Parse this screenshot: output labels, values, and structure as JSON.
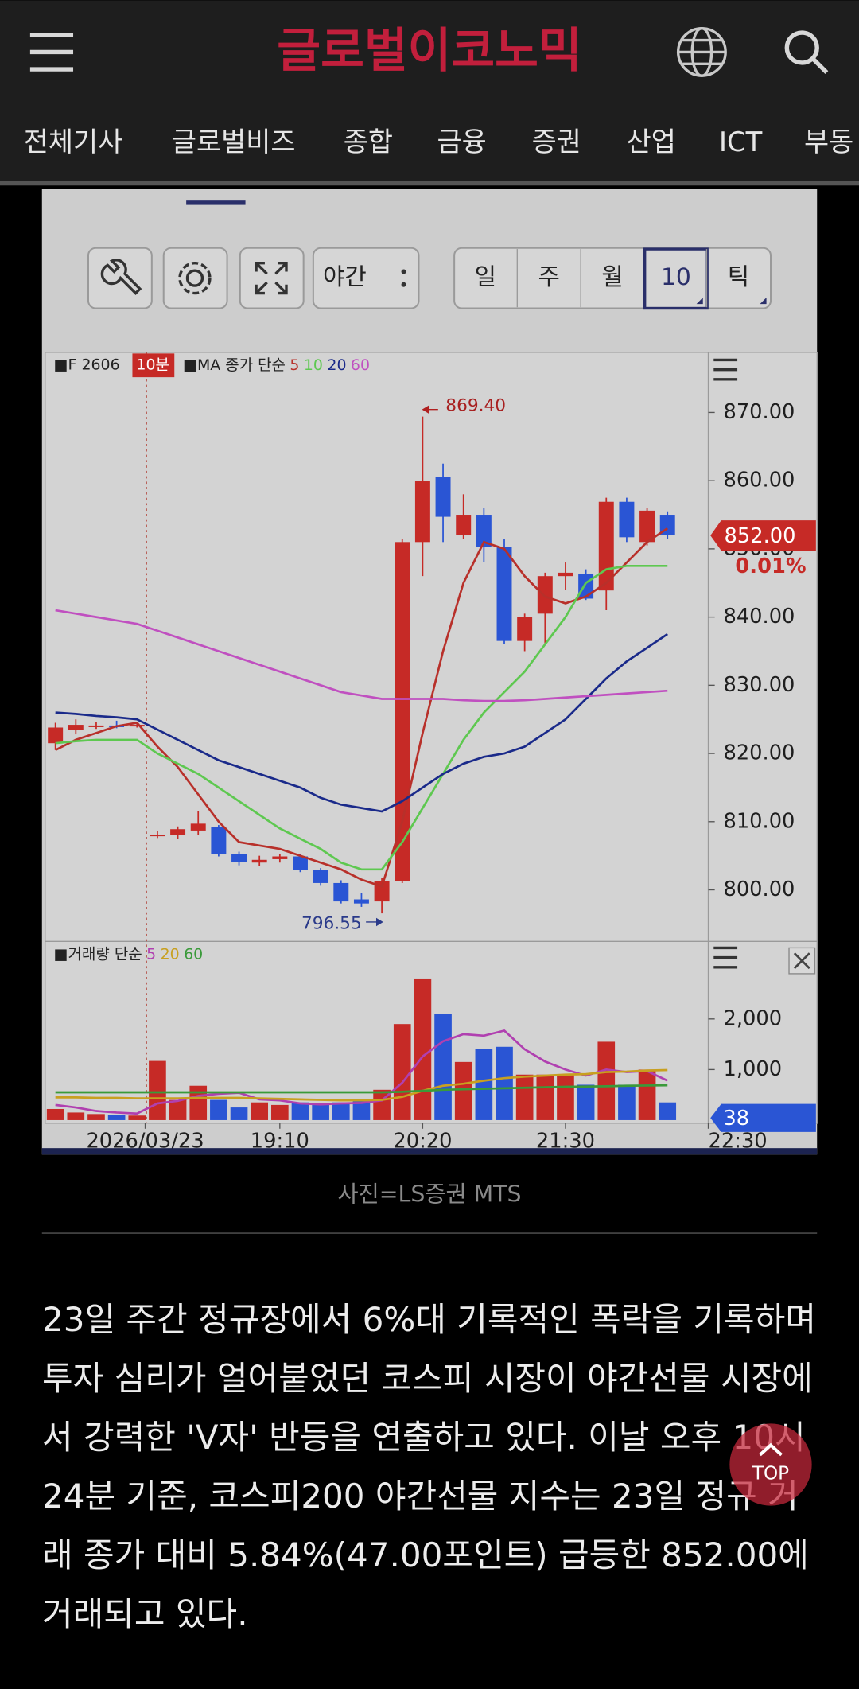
{
  "header": {
    "logo": "글로벌이코노믹",
    "nav": [
      "전체기사",
      "글로벌비즈",
      "종합",
      "금융",
      "증권",
      "산업",
      "ICT",
      "부동"
    ]
  },
  "toolbar": {
    "session": "야간",
    "periods": [
      "일",
      "주",
      "월",
      "10",
      "틱"
    ],
    "selected": 3
  },
  "chart_data": {
    "type": "candlestick",
    "symbol": "■F 2606",
    "interval": "10분",
    "ma_title": "■MA 종가 단순",
    "x": [
      0,
      1,
      2,
      3,
      4,
      5,
      6,
      7,
      8,
      9,
      10,
      11,
      12,
      13,
      14,
      15,
      16,
      17,
      18,
      19,
      20,
      21,
      22,
      23,
      24,
      25,
      26,
      27,
      28,
      29,
      30
    ],
    "open": [
      821.5,
      823.4,
      824.0,
      824.1,
      824.0,
      808.0,
      808.0,
      808.7,
      809.2,
      805.2,
      804.0,
      804.5,
      804.9,
      802.9,
      801.0,
      798.6,
      798.3,
      801.3,
      851.0,
      860.5,
      852.0,
      855.0,
      850.3,
      836.5,
      840.5,
      846.0,
      846.3,
      843.9,
      856.9,
      851.0,
      855.0
    ],
    "high": [
      824.5,
      825.0,
      824.6,
      824.8,
      824.5,
      808.6,
      809.3,
      811.5,
      809.5,
      805.6,
      805.0,
      805.2,
      805.3,
      803.2,
      801.4,
      799.5,
      801.8,
      851.5,
      869.4,
      862.5,
      858.0,
      856.0,
      851.5,
      840.5,
      846.5,
      848.0,
      847.0,
      857.5,
      857.5,
      856.0,
      855.5
    ],
    "low": [
      820.5,
      822.8,
      823.6,
      823.7,
      823.8,
      807.6,
      807.5,
      808.0,
      804.9,
      803.6,
      803.5,
      804.0,
      802.6,
      800.6,
      798.0,
      797.5,
      796.55,
      801.0,
      846.0,
      851.0,
      851.5,
      848.0,
      836.0,
      835.0,
      836.0,
      844.0,
      842.5,
      841.0,
      851.0,
      850.5,
      851.5
    ],
    "close": [
      823.8,
      824.2,
      824.1,
      824.0,
      824.2,
      808.1,
      808.9,
      809.7,
      805.2,
      804.1,
      804.4,
      804.9,
      802.9,
      801.0,
      798.3,
      798.0,
      801.3,
      851.0,
      860.0,
      854.7,
      855.0,
      850.3,
      836.5,
      840.0,
      846.0,
      846.5,
      842.7,
      856.9,
      851.7,
      855.6,
      852.0
    ],
    "up_color": "#c62a26",
    "down_color": "#2a55d4",
    "moving_averages": [
      {
        "name": "5",
        "color": "#b8302a",
        "values": [
          820.5,
          822,
          823,
          824,
          824.5,
          821,
          818,
          814,
          810,
          807,
          806.5,
          806,
          805,
          804,
          803,
          801.5,
          800.5,
          810,
          823,
          835,
          845,
          851,
          850,
          846,
          843,
          842,
          843,
          845,
          848,
          851,
          853
        ]
      },
      {
        "name": "10",
        "color": "#5ec850",
        "values": [
          821.5,
          821.8,
          822,
          822,
          822,
          820,
          818.5,
          817,
          815,
          813,
          811,
          809,
          807.5,
          806,
          804,
          803,
          803,
          807,
          812,
          817,
          822,
          826,
          829,
          832,
          836,
          840,
          845,
          847,
          847.5,
          847.5,
          847.5
        ]
      },
      {
        "name": "20",
        "color": "#1a2a8a",
        "values": [
          826,
          825.8,
          825.5,
          825.3,
          825,
          823.5,
          822,
          820.5,
          819,
          818,
          817,
          816,
          815,
          813.5,
          812.5,
          812,
          811.5,
          813,
          815,
          817,
          818.5,
          819.5,
          820,
          821,
          823,
          825,
          828,
          831,
          833.5,
          835.5,
          837.5
        ]
      },
      {
        "name": "60",
        "color": "#c050c0",
        "values": [
          841,
          840.5,
          840,
          839.5,
          839,
          838,
          837,
          836,
          835,
          834,
          833,
          832,
          831,
          830,
          829,
          828.5,
          828,
          828,
          828,
          828,
          827.8,
          827.7,
          827.7,
          827.8,
          828,
          828.2,
          828.4,
          828.6,
          828.8,
          829,
          829.2
        ]
      }
    ],
    "xlim": [
      -0.5,
      32
    ],
    "xticks": [
      {
        "value": 4.4,
        "label": "2026/03/23"
      },
      {
        "value": 11,
        "label": "19:10"
      },
      {
        "value": 18,
        "label": "20:20"
      },
      {
        "value": 25,
        "label": "21:30"
      },
      {
        "value": 32,
        "label": "22:30"
      }
    ],
    "ylim": [
      792.6,
      878.8
    ],
    "yticks": [
      {
        "value": 870,
        "label": "870.00"
      },
      {
        "value": 860,
        "label": "860.00"
      },
      {
        "value": 850,
        "label": "850.00"
      },
      {
        "value": 840,
        "label": "840.00"
      },
      {
        "value": 830,
        "label": "830.00"
      },
      {
        "value": 820,
        "label": "820.00"
      },
      {
        "value": 810,
        "label": "810.00"
      },
      {
        "value": 800,
        "label": "800.00"
      }
    ],
    "high_label": "869.40",
    "low_label": "796.55",
    "current_price_label": "852.00",
    "change_label": "0.01%",
    "volume": {
      "title": "■거래량 단순",
      "values": [
        220,
        150,
        120,
        100,
        90,
        1170,
        400,
        680,
        400,
        250,
        350,
        300,
        350,
        300,
        350,
        380,
        600,
        1900,
        2800,
        2100,
        1150,
        1400,
        1450,
        900,
        900,
        900,
        700,
        1550,
        700,
        1000,
        350
      ],
      "ylim": [
        0,
        3470
      ],
      "yticks": [
        {
          "value": 2000,
          "label": "2,000"
        },
        {
          "value": 1000,
          "label": "1,000"
        }
      ],
      "current_label": 38,
      "moving_averages": [
        {
          "name": "5",
          "color": "#b040b0",
          "values": [
            300,
            250,
            180,
            150,
            130,
            330,
            380,
            480,
            520,
            540,
            410,
            390,
            330,
            310,
            330,
            340,
            390,
            740,
            1260,
            1560,
            1700,
            1670,
            1770,
            1400,
            1160,
            1000,
            880,
            1000,
            950,
            970,
            780
          ]
        },
        {
          "name": "20",
          "color": "#c8a020",
          "values": [
            450,
            450,
            440,
            440,
            430,
            430,
            430,
            440,
            440,
            440,
            430,
            420,
            410,
            400,
            390,
            390,
            400,
            460,
            580,
            680,
            720,
            780,
            830,
            860,
            880,
            900,
            910,
            950,
            960,
            980,
            990
          ]
        },
        {
          "name": "60",
          "color": "#3a9a3a",
          "values": [
            550,
            550,
            550,
            550,
            550,
            550,
            550,
            550,
            550,
            550,
            550,
            550,
            550,
            550,
            550,
            550,
            550,
            560,
            580,
            600,
            610,
            620,
            630,
            640,
            650,
            660,
            665,
            670,
            680,
            685,
            690
          ]
        }
      ]
    }
  },
  "caption": "사진=LS증권 MTS",
  "article": {
    "body": "23일 주간 정규장에서 6%대 기록적인 폭락을 기록하며 투자 심리가 얼어붙었던 코스피 시장이 야간선물 시장에서 강력한 'V자' 반등을 연출하고 있다. 이날 오후 10시 24분 기준, 코스피200 야간선물 지수는 23일 정규 거래 종가 대비 5.84%(47.00포인트) 급등한 852.00에 거래되고 있다."
  },
  "top_button": "TOP"
}
